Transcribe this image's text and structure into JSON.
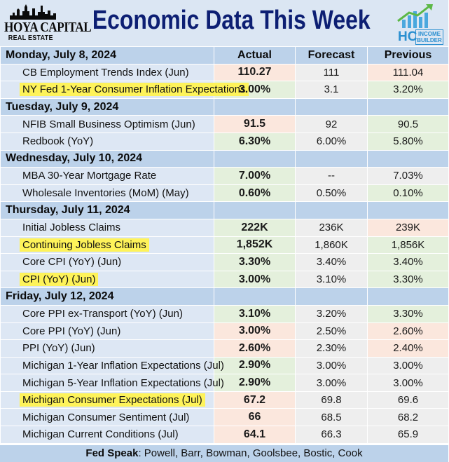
{
  "header": {
    "title": "Economic Data This Week",
    "logo_left_line1": "HOYA CAPITAL",
    "logo_left_line2": "REAL ESTATE",
    "logo_right_mark": "HC",
    "logo_right_text1": "INCOME",
    "logo_right_text2": "BUILDER"
  },
  "columns": {
    "actual": "Actual",
    "forecast": "Forecast",
    "previous": "Previous"
  },
  "colors": {
    "positive_bg": "#e4f0dc",
    "negative_bg": "#fbe7dd",
    "neutral_bg": "#eeeeee",
    "positive_text": "#1e9a2c",
    "negative_text": "#e9311e",
    "highlight": "#fef35a",
    "title": "#0d1f73"
  },
  "days": [
    {
      "label": "Monday, July 8, 2024",
      "rows": [
        {
          "name": "CB Employment Trends Index (Jun)",
          "actual": "110.27",
          "forecast": "111",
          "previous": "111.04"
        },
        {
          "name": "NY Fed 1-Year Consumer Inflation Expectations",
          "actual": "3.00%",
          "forecast": "3.1",
          "previous": "3.20%"
        }
      ]
    },
    {
      "label": "Tuesday, July 9, 2024",
      "rows": [
        {
          "name": "NFIB Small Business Optimism (Jun)",
          "actual": "91.5",
          "forecast": "92",
          "previous": "90.5"
        },
        {
          "name": "Redbook (YoY)",
          "actual": "6.30%",
          "forecast": "6.00%",
          "previous": "5.80%"
        }
      ]
    },
    {
      "label": "Wednesday, July 10, 2024",
      "rows": [
        {
          "name": "MBA 30-Year Mortgage Rate",
          "actual": "7.00%",
          "forecast": "--",
          "previous": "7.03%"
        },
        {
          "name": "Wholesale Inventories (MoM) (May)",
          "actual": "0.60%",
          "forecast": "0.50%",
          "previous": "0.10%"
        }
      ]
    },
    {
      "label": "Thursday, July 11, 2024",
      "rows": [
        {
          "name": "Initial Jobless Claims",
          "actual": "222K",
          "forecast": "236K",
          "previous": "239K"
        },
        {
          "name": "Continuing Jobless Claims",
          "actual": "1,852K",
          "forecast": "1,860K",
          "previous": "1,856K"
        },
        {
          "name": "Core CPI (YoY) (Jun)",
          "actual": "3.30%",
          "forecast": "3.40%",
          "previous": "3.40%"
        },
        {
          "name": "CPI (YoY) (Jun)",
          "actual": "3.00%",
          "forecast": "3.10%",
          "previous": "3.30%"
        }
      ]
    },
    {
      "label": "Friday, July 12, 2024",
      "rows": [
        {
          "name": "Core PPI ex-Transport (YoY) (Jun)",
          "actual": "3.10%",
          "forecast": "3.20%",
          "previous": "3.30%"
        },
        {
          "name": "Core PPI (YoY) (Jun)",
          "actual": "3.00%",
          "forecast": "2.50%",
          "previous": "2.60%"
        },
        {
          "name": "PPI (YoY) (Jun)",
          "actual": "2.60%",
          "forecast": "2.30%",
          "previous": "2.40%"
        },
        {
          "name": "Michigan 1-Year Inflation Expectations (Jul)",
          "actual": "2.90%",
          "forecast": "3.00%",
          "previous": "3.00%"
        },
        {
          "name": "Michigan 5-Year Inflation Expectations (Jul)",
          "actual": "2.90%",
          "forecast": "3.00%",
          "previous": "3.00%"
        },
        {
          "name": "Michigan Consumer Expectations (Jul)",
          "actual": "67.2",
          "forecast": "69.8",
          "previous": "69.6"
        },
        {
          "name": "Michigan Consumer Sentiment (Jul)",
          "actual": "66",
          "forecast": "68.5",
          "previous": "68.2"
        },
        {
          "name": "Michigan Current Conditions (Jul)",
          "actual": "64.1",
          "forecast": "66.3",
          "previous": "65.9"
        }
      ]
    }
  ],
  "footer": {
    "label": "Fed Speak",
    "text": ": Powell, Barr, Bowman, Goolsbee, Bostic, Cook"
  }
}
